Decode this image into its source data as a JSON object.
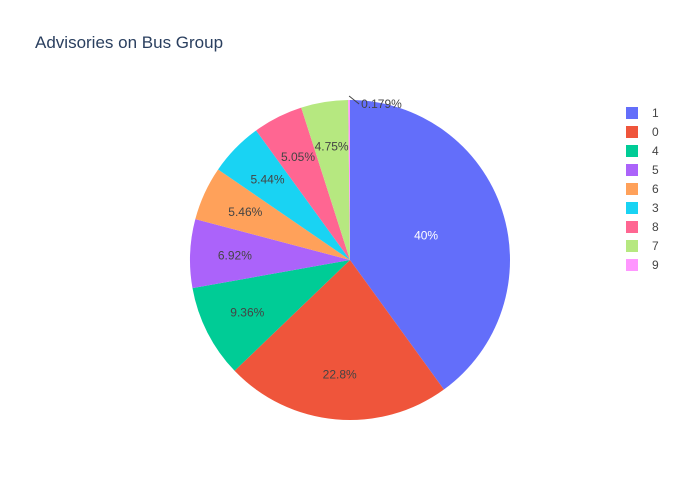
{
  "chart_data": {
    "type": "pie",
    "title": "Advisories on Bus Group",
    "labels": [
      "1",
      "0",
      "4",
      "5",
      "6",
      "3",
      "8",
      "7",
      "9"
    ],
    "values": [
      40.0,
      22.8,
      9.36,
      6.92,
      5.46,
      5.44,
      5.05,
      4.75,
      0.179
    ],
    "text_labels": [
      "40%",
      "22.8%",
      "9.36%",
      "6.92%",
      "5.46%",
      "5.44%",
      "5.05%",
      "4.75%",
      "0.179%"
    ],
    "colors": [
      "#636efa",
      "#EF553B",
      "#00cc96",
      "#ab63fa",
      "#FFA15A",
      "#19d3f3",
      "#FF6692",
      "#B6E880",
      "#FF97FF"
    ],
    "legend": "right",
    "sort": "descending",
    "direction": "clockwise",
    "start_angle": "top"
  }
}
